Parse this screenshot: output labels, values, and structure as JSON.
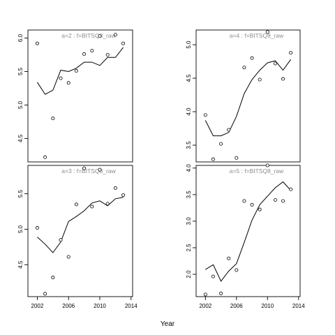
{
  "chart_data": {
    "type": "scatter",
    "xlabel": "Year",
    "panels": [
      {
        "title": "a=2 : f=BITSQ8_raw",
        "xlim": [
          2000.8,
          2014.2
        ],
        "ylim": [
          4.15,
          6.12
        ],
        "xticks": [
          2002,
          2006,
          2010,
          2014
        ],
        "show_xticks": false,
        "yticks": [
          4.5,
          5.0,
          5.5,
          6.0
        ],
        "ytick_labels": [
          "4.5",
          "5.0",
          "5.5",
          "6.0"
        ],
        "points": {
          "x": [
            2002,
            2003,
            2004,
            2005,
            2006,
            2007,
            2008,
            2009,
            2010,
            2011,
            2012,
            2013
          ],
          "y": [
            5.92,
            4.22,
            4.8,
            5.4,
            5.33,
            5.51,
            5.76,
            5.81,
            6.03,
            5.75,
            6.05,
            5.92
          ]
        },
        "fit": {
          "x": [
            2002,
            2003,
            2004,
            2005,
            2006,
            2007,
            2008,
            2009,
            2010,
            2011,
            2012,
            2013
          ],
          "y": [
            5.34,
            5.16,
            5.22,
            5.52,
            5.5,
            5.55,
            5.64,
            5.64,
            5.59,
            5.71,
            5.71,
            5.86
          ]
        }
      },
      {
        "title": "a=4 : f=BITSQ8_raw",
        "xlim": [
          2000.8,
          2014.2
        ],
        "ylim": [
          3.25,
          5.22
        ],
        "xticks": [
          2002,
          2006,
          2010,
          2014
        ],
        "show_xticks": false,
        "yticks": [
          3.5,
          4.0,
          4.5,
          5.0
        ],
        "ytick_labels": [
          "3.5",
          "4.0",
          "4.5",
          "5.0"
        ],
        "points": {
          "x": [
            2002,
            2003,
            2004,
            2005,
            2006,
            2007,
            2008,
            2009,
            2010,
            2011,
            2012,
            2013
          ],
          "y": [
            3.95,
            3.29,
            3.52,
            3.73,
            3.31,
            4.66,
            4.8,
            4.48,
            5.19,
            4.72,
            4.49,
            4.88
          ]
        },
        "fit": {
          "x": [
            2002,
            2003,
            2004,
            2005,
            2006,
            2007,
            2008,
            2009,
            2010,
            2011,
            2012,
            2013
          ],
          "y": [
            3.87,
            3.64,
            3.64,
            3.69,
            3.93,
            4.27,
            4.48,
            4.62,
            4.73,
            4.76,
            4.62,
            4.78
          ]
        }
      },
      {
        "title": "a=3 : f=BITSQ8_raw",
        "xlim": [
          2000.8,
          2014.2
        ],
        "ylim": [
          4.05,
          5.9
        ],
        "xticks": [
          2002,
          2006,
          2010,
          2014
        ],
        "show_xticks": true,
        "xtick_labels": [
          "2002",
          "2006",
          "2010",
          "2014"
        ],
        "yticks": [
          4.5,
          5.0,
          5.5
        ],
        "ytick_labels": [
          "4.5",
          "5.0",
          "5.5"
        ],
        "points": {
          "x": [
            2002,
            2003,
            2004,
            2005,
            2006,
            2007,
            2008,
            2009,
            2010,
            2011,
            2012,
            2013
          ],
          "y": [
            5.02,
            4.09,
            4.32,
            4.85,
            4.61,
            5.35,
            5.86,
            5.32,
            5.84,
            5.36,
            5.58,
            5.48
          ]
        },
        "fit": {
          "x": [
            2002,
            2003,
            2004,
            2005,
            2006,
            2007,
            2008,
            2009,
            2010,
            2011,
            2012,
            2013
          ],
          "y": [
            4.89,
            4.79,
            4.67,
            4.82,
            5.11,
            5.18,
            5.26,
            5.37,
            5.4,
            5.33,
            5.43,
            5.45
          ]
        }
      },
      {
        "title": "a=5 : f=BITSQ8_raw",
        "xlim": [
          2000.8,
          2014.2
        ],
        "ylim": [
          1.58,
          4.05
        ],
        "xticks": [
          2002,
          2006,
          2010,
          2014
        ],
        "show_xticks": true,
        "xtick_labels": [
          "2002",
          "2006",
          "2010",
          "2014"
        ],
        "yticks": [
          2.0,
          2.5,
          3.0,
          3.5,
          4.0
        ],
        "ytick_labels": [
          "2.0",
          "2.5",
          "3.0",
          "3.5",
          "4.0"
        ],
        "points": {
          "x": [
            2002,
            2003,
            2004,
            2005,
            2006,
            2007,
            2008,
            2009,
            2010,
            2011,
            2012,
            2013
          ],
          "y": [
            1.62,
            1.96,
            1.64,
            2.3,
            2.08,
            3.38,
            3.31,
            3.22,
            4.05,
            3.4,
            3.38,
            3.6
          ]
        },
        "fit": {
          "x": [
            2002,
            2003,
            2004,
            2005,
            2006,
            2007,
            2008,
            2009,
            2010,
            2011,
            2012,
            2013
          ],
          "y": [
            2.09,
            2.18,
            1.87,
            2.06,
            2.2,
            2.6,
            3.02,
            3.31,
            3.47,
            3.63,
            3.74,
            3.58
          ]
        }
      }
    ]
  }
}
